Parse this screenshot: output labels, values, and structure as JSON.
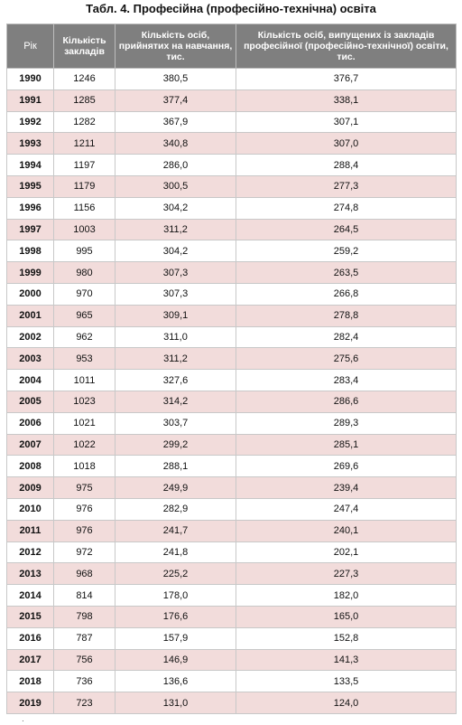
{
  "title": "Табл. 4. Професійна (професійно-технічна) освіта",
  "headers": {
    "year": "Рік",
    "institutions": "Кількість закладів",
    "admitted": "Кількість осіб, прийнятих на навчання, тис.",
    "graduated": "Кількість осіб, випущених із закладів професійної (професійно-технічної) освіти, тис."
  },
  "rows": [
    {
      "year": "1990",
      "institutions": "1246",
      "admitted": "380,5",
      "graduated": "376,7"
    },
    {
      "year": "1991",
      "institutions": "1285",
      "admitted": "377,4",
      "graduated": "338,1"
    },
    {
      "year": "1992",
      "institutions": "1282",
      "admitted": "367,9",
      "graduated": "307,1"
    },
    {
      "year": "1993",
      "institutions": "1211",
      "admitted": "340,8",
      "graduated": "307,0"
    },
    {
      "year": "1994",
      "institutions": "1197",
      "admitted": "286,0",
      "graduated": "288,4"
    },
    {
      "year": "1995",
      "institutions": "1179",
      "admitted": "300,5",
      "graduated": "277,3"
    },
    {
      "year": "1996",
      "institutions": "1156",
      "admitted": "304,2",
      "graduated": "274,8"
    },
    {
      "year": "1997",
      "institutions": "1003",
      "admitted": "311,2",
      "graduated": "264,5"
    },
    {
      "year": "1998",
      "institutions": "995",
      "admitted": "304,2",
      "graduated": "259,2"
    },
    {
      "year": "1999",
      "institutions": "980",
      "admitted": "307,3",
      "graduated": "263,5"
    },
    {
      "year": "2000",
      "institutions": "970",
      "admitted": "307,3",
      "graduated": "266,8"
    },
    {
      "year": "2001",
      "institutions": "965",
      "admitted": "309,1",
      "graduated": "278,8"
    },
    {
      "year": "2002",
      "institutions": "962",
      "admitted": "311,0",
      "graduated": "282,4"
    },
    {
      "year": "2003",
      "institutions": "953",
      "admitted": "311,2",
      "graduated": "275,6"
    },
    {
      "year": "2004",
      "institutions": "1011",
      "admitted": "327,6",
      "graduated": "283,4"
    },
    {
      "year": "2005",
      "institutions": "1023",
      "admitted": "314,2",
      "graduated": "286,6"
    },
    {
      "year": "2006",
      "institutions": "1021",
      "admitted": "303,7",
      "graduated": "289,3"
    },
    {
      "year": "2007",
      "institutions": "1022",
      "admitted": "299,2",
      "graduated": "285,1"
    },
    {
      "year": "2008",
      "institutions": "1018",
      "admitted": "288,1",
      "graduated": "269,6"
    },
    {
      "year": "2009",
      "institutions": "975",
      "admitted": "249,9",
      "graduated": "239,4"
    },
    {
      "year": "2010",
      "institutions": "976",
      "admitted": "282,9",
      "graduated": "247,4"
    },
    {
      "year": "2011",
      "institutions": "976",
      "admitted": "241,7",
      "graduated": "240,1"
    },
    {
      "year": "2012",
      "institutions": "972",
      "admitted": "241,8",
      "graduated": "202,1"
    },
    {
      "year": "2013",
      "institutions": "968",
      "admitted": "225,2",
      "graduated": "227,3"
    },
    {
      "year": "2014",
      "institutions": "814",
      "admitted": "178,0",
      "graduated": "182,0"
    },
    {
      "year": "2015",
      "institutions": "798",
      "admitted": "176,6",
      "graduated": "165,0"
    },
    {
      "year": "2016",
      "institutions": "787",
      "admitted": "157,9",
      "graduated": "152,8"
    },
    {
      "year": "2017",
      "institutions": "756",
      "admitted": "146,9",
      "graduated": "141,3"
    },
    {
      "year": "2018",
      "institutions": "736",
      "admitted": "136,6",
      "graduated": "133,5"
    },
    {
      "year": "2019",
      "institutions": "723",
      "admitted": "131,0",
      "graduated": "124,0"
    }
  ],
  "footer_mark": "·",
  "colors": {
    "header_bg": "#7f7f7f",
    "header_text": "#ffffff",
    "stripe": "#f2dcdb",
    "border": "#c8c8c8"
  }
}
